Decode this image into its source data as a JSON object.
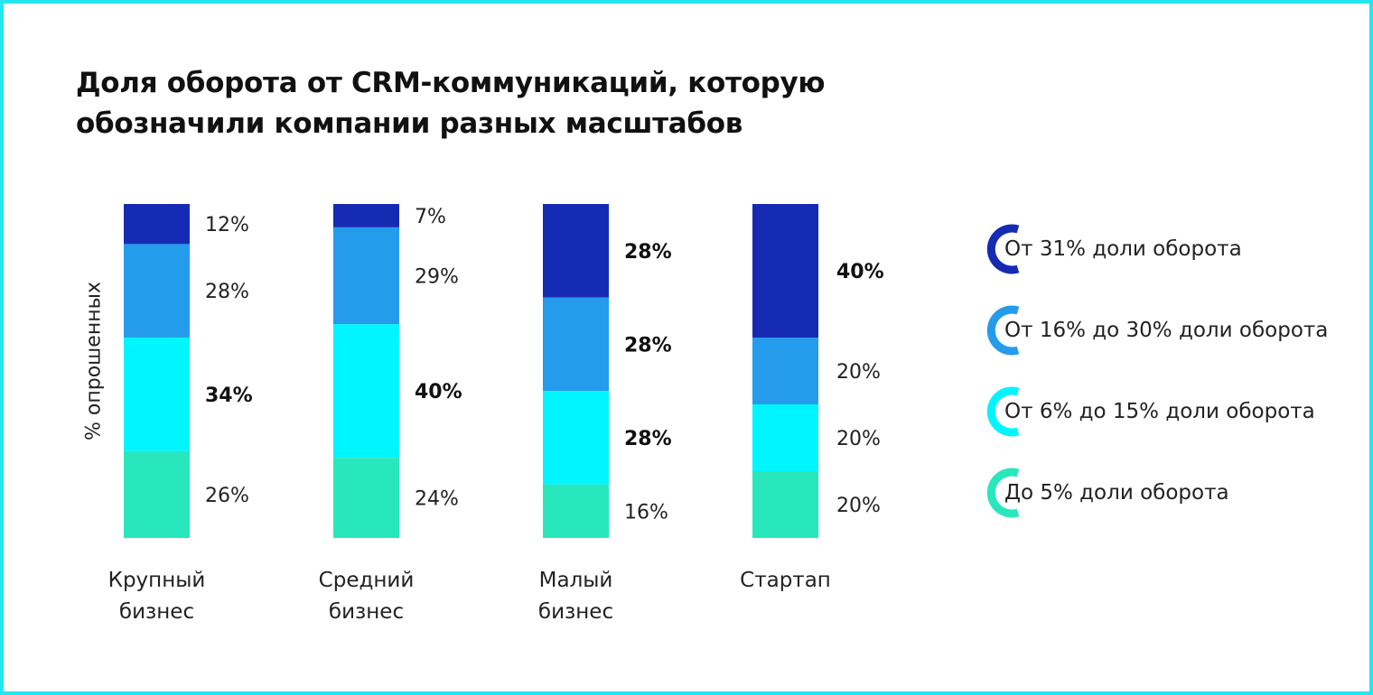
{
  "title_line1": "Доля оборота от CRM-коммуникаций, которую",
  "title_line2": "обозначили компании разных масштабов",
  "chart_data": {
    "type": "bar",
    "stacked": true,
    "orientation": "vertical",
    "ylabel": "% опрошенных",
    "ylim": [
      0,
      100
    ],
    "grid": false,
    "legend_position": "right",
    "categories": [
      "Крупный бизнес",
      "Средний бизнес",
      "Малый бизнес",
      "Стартап"
    ],
    "category_labels": [
      [
        "Крупный",
        "бизнес"
      ],
      [
        "Средний",
        "бизнес"
      ],
      [
        "Малый",
        "бизнес"
      ],
      [
        "Стартап"
      ]
    ],
    "series": [
      {
        "name": "От 31% доли оборота",
        "color": "#162bb4",
        "values": [
          12,
          7,
          28,
          40
        ],
        "labels": [
          "12%",
          "7%",
          "28%",
          "40%"
        ]
      },
      {
        "name": "От 16% до 30% доли оборота",
        "color": "#259bec",
        "values": [
          28,
          29,
          28,
          20
        ],
        "labels": [
          "28%",
          "29%",
          "28%",
          "20%"
        ]
      },
      {
        "name": "От 6% до 15% доли оборота",
        "color": "#00f6fe",
        "values": [
          34,
          40,
          28,
          20
        ],
        "labels": [
          "34%",
          "40%",
          "28%",
          "20%"
        ]
      },
      {
        "name": "До 5% доли оборота",
        "color": "#28e7bc",
        "values": [
          26,
          24,
          16,
          20
        ],
        "labels": [
          "26%",
          "24%",
          "16%",
          "20%"
        ]
      }
    ],
    "bold_labels": [
      [
        false,
        false,
        true,
        false
      ],
      [
        false,
        false,
        true,
        false
      ],
      [
        true,
        true,
        true,
        false
      ],
      [
        true,
        false,
        false,
        false
      ]
    ]
  },
  "frame_color": "#23e6f0"
}
